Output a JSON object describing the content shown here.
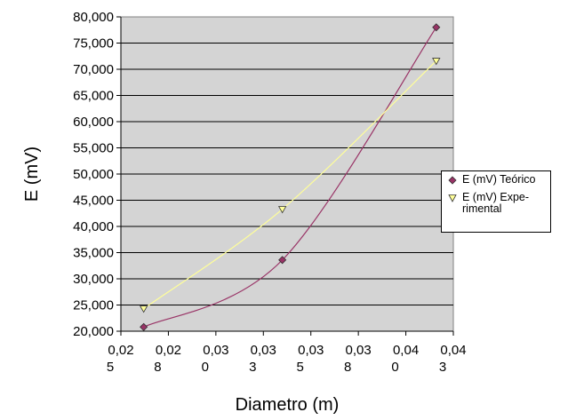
{
  "chart_data": {
    "type": "scatter",
    "title": "",
    "xlabel": "Diametro (m)",
    "ylabel": "E (mV)",
    "ylim": [
      20000,
      80000
    ],
    "y_ticks": [
      "20,000",
      "25,000",
      "30,000",
      "35,000",
      "40,000",
      "45,000",
      "50,000",
      "55,000",
      "60,000",
      "65,000",
      "70,000",
      "75,000",
      "80,000"
    ],
    "x_ticks": [
      {
        "top": "0,02",
        "bottom": "5"
      },
      {
        "top": "0,02",
        "bottom": "8"
      },
      {
        "top": "0,03",
        "bottom": "0"
      },
      {
        "top": "0,03",
        "bottom": "3"
      },
      {
        "top": "0,03",
        "bottom": "5"
      },
      {
        "top": "0,03",
        "bottom": "8"
      },
      {
        "top": "0,04",
        "bottom": "0"
      },
      {
        "top": "0,04",
        "bottom": "3"
      }
    ],
    "xlim": [
      0.025,
      0.0425
    ],
    "grid": "horizontal",
    "background": "#d4d4d4",
    "legend_position": "right",
    "series": [
      {
        "name": "E (mV) Teórico",
        "marker": "diamond",
        "color": "#993366",
        "x": [
          0.0262,
          0.0335,
          0.0416
        ],
        "y": [
          20800,
          33600,
          78000
        ]
      },
      {
        "name": "E (mV) Experimental",
        "marker": "triangle-down",
        "color": "#ffff99",
        "x": [
          0.0262,
          0.0335,
          0.0416
        ],
        "y": [
          24300,
          43300,
          71600
        ]
      }
    ]
  },
  "legend": {
    "items": [
      {
        "label": "E (mV) Teórico",
        "color": "#993366",
        "marker": "diamond"
      },
      {
        "label": "E (mV) Expe-\nrimental",
        "color": "#ffff99",
        "marker": "triangle-down"
      }
    ]
  }
}
